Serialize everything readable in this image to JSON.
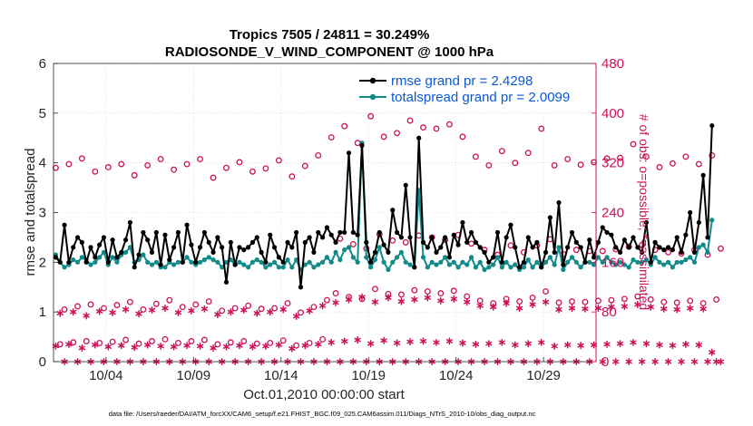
{
  "colors": {
    "rmse": "#000000",
    "spread": "#118a8a",
    "obs": "#cc1158",
    "legend_text": "#0a58d6",
    "axis": "#262626"
  },
  "chart_data": {
    "type": "line",
    "title": "Tropics 7505 / 24811 = 30.249%",
    "subtitle": "RADIOSONDE_V_WIND_COMPONENT @ 1000 hPa",
    "xlabel": "Oct.01,2010 00:00:00 start",
    "ylabel": "rmse and totalspread",
    "y2label": "# of obs: o=possible; *=assimilated",
    "ylim": [
      0,
      6
    ],
    "y2lim": [
      0,
      480
    ],
    "yticks": [
      "0",
      "1",
      "2",
      "3",
      "4",
      "5",
      "6"
    ],
    "y2ticks": [
      "0",
      "80",
      "160",
      "240",
      "320",
      "400",
      "480"
    ],
    "xlim": [
      1.0,
      32.0
    ],
    "xticks": [
      {
        "x": 4,
        "label": "10/04"
      },
      {
        "x": 9,
        "label": "10/09"
      },
      {
        "x": 14,
        "label": "10/14"
      },
      {
        "x": 19,
        "label": "10/19"
      },
      {
        "x": 24,
        "label": "10/24"
      },
      {
        "x": 29,
        "label": "10/29"
      }
    ],
    "legend": {
      "position": "top-right",
      "entries": [
        "rmse grand pr = 2.4298",
        "totalspread grand pr = 2.0099"
      ]
    },
    "series": [
      {
        "name": "rmse",
        "x0": 1.125,
        "dx": 0.25,
        "axis": "left",
        "values": [
          2.1,
          2.0,
          2.75,
          2.0,
          2.3,
          2.5,
          2.4,
          2.0,
          2.3,
          2.1,
          2.35,
          2.5,
          2.0,
          2.45,
          2.1,
          2.2,
          2.45,
          2.8,
          1.9,
          2.15,
          2.6,
          2.45,
          2.2,
          2.6,
          1.95,
          2.55,
          2.05,
          2.3,
          2.6,
          2.0,
          2.75,
          2.35,
          2.0,
          2.3,
          2.6,
          2.4,
          2.2,
          2.5,
          2.3,
          1.6,
          2.4,
          1.95,
          2.3,
          2.25,
          2.3,
          2.4,
          2.5,
          2.2,
          2.0,
          2.55,
          2.3,
          2.1,
          2.0,
          2.4,
          2.3,
          2.6,
          1.5,
          2.4,
          2.5,
          2.2,
          2.6,
          2.5,
          2.7,
          2.55,
          2.4,
          2.6,
          2.6,
          4.2,
          2.6,
          2.55,
          4.35,
          2.4,
          2.0,
          2.2,
          2.6,
          2.35,
          2.2,
          3.05,
          2.6,
          2.5,
          3.55,
          2.5,
          1.9,
          4.5,
          2.4,
          2.3,
          2.5,
          2.2,
          2.3,
          2.5,
          2.1,
          2.55,
          2.35,
          2.8,
          2.4,
          2.6,
          2.4,
          2.3,
          2.2,
          2.0,
          2.1,
          2.6,
          2.0,
          2.5,
          2.75,
          2.3,
          1.9,
          2.0,
          2.5,
          2.3,
          2.4,
          1.9,
          2.2,
          2.9,
          2.2,
          3.2,
          1.95,
          2.3,
          2.6,
          2.4,
          2.3,
          2.0,
          2.45,
          2.1,
          2.4,
          2.7,
          2.6,
          2.55,
          2.3,
          2.2,
          2.45,
          2.3,
          2.5,
          2.3,
          2.2,
          2.8,
          2.0,
          2.4,
          2.3,
          2.25,
          2.3,
          2.25,
          2.5,
          2.2,
          2.55,
          3.0,
          2.2,
          2.8,
          3.75,
          2.5,
          4.75
        ]
      },
      {
        "name": "totalspread",
        "x0": 1.125,
        "dx": 0.25,
        "axis": "left",
        "values": [
          2.15,
          2.0,
          1.9,
          1.95,
          2.05,
          2.0,
          2.1,
          2.05,
          1.95,
          2.0,
          2.1,
          2.2,
          1.95,
          2.1,
          2.0,
          2.15,
          2.2,
          2.3,
          2.0,
          2.05,
          2.15,
          2.0,
          1.95,
          2.0,
          1.9,
          1.9,
          2.0,
          1.95,
          2.0,
          2.0,
          2.1,
          2.0,
          1.95,
          2.0,
          2.05,
          2.1,
          2.05,
          2.0,
          1.9,
          2.0,
          2.05,
          1.95,
          2.0,
          1.95,
          1.9,
          2.0,
          2.05,
          2.0,
          1.9,
          1.95,
          2.0,
          1.9,
          1.9,
          2.05,
          1.9,
          2.05,
          1.85,
          1.95,
          2.0,
          1.9,
          1.95,
          2.0,
          2.1,
          2.0,
          2.2,
          2.05,
          2.25,
          2.3,
          2.1,
          2.0,
          4.4,
          2.1,
          1.9,
          2.05,
          2.3,
          2.0,
          1.85,
          2.0,
          2.1,
          2.2,
          2.0,
          1.95,
          1.9,
          3.45,
          2.1,
          1.9,
          2.0,
          1.95,
          2.0,
          2.1,
          1.95,
          2.0,
          1.9,
          2.0,
          1.95,
          2.1,
          1.9,
          2.0,
          1.85,
          1.9,
          1.95,
          2.1,
          1.9,
          2.0,
          1.9,
          1.95,
          1.85,
          1.9,
          2.05,
          1.9,
          2.0,
          1.9,
          2.0,
          2.1,
          1.95,
          2.3,
          1.85,
          2.0,
          2.1,
          2.0,
          1.9,
          2.0,
          2.0,
          1.95,
          2.1,
          2.0,
          2.1,
          2.0,
          1.95,
          2.0,
          1.95,
          1.9,
          2.05,
          2.0,
          2.0,
          2.05,
          1.95,
          2.1,
          2.0,
          1.95,
          2.0,
          1.9,
          2.0,
          2.0,
          2.05,
          2.1,
          2.0,
          2.3,
          2.35,
          2.2,
          2.85
        ]
      },
      {
        "name": "possible",
        "x0": 1.125,
        "dx": 0.25,
        "axis": "right",
        "values": [
          312,
          28,
          84,
          318,
          31,
          89,
          327,
          33,
          92,
          306,
          30,
          86,
          313,
          32,
          91,
          318,
          35,
          96,
          300,
          29,
          84,
          316,
          33,
          93,
          326,
          36,
          99,
          309,
          30,
          88,
          318,
          33,
          92,
          326,
          35,
          97,
          296,
          28,
          82,
          312,
          31,
          86,
          321,
          33,
          90,
          306,
          29,
          85,
          311,
          30,
          86,
          324,
          34,
          94,
          298,
          26,
          79,
          315,
          30,
          88,
          332,
          36,
          99,
          361,
          110,
          198,
          379,
          104,
          189,
          352,
          101,
          182,
          395,
          117,
          205,
          362,
          109,
          195,
          368,
          108,
          192,
          388,
          115,
          203,
          377,
          113,
          200,
          375,
          110,
          196,
          382,
          114,
          204,
          362,
          105,
          190,
          330,
          98,
          180,
          316,
          94,
          172,
          339,
          101,
          187,
          320,
          97,
          176,
          336,
          103,
          187,
          375,
          113,
          197,
          316,
          95,
          173,
          326,
          97,
          180,
          317,
          96,
          178,
          321,
          98,
          178,
          327,
          99,
          181,
          328,
          101,
          185,
          350,
          105,
          188,
          330,
          100,
          180,
          313,
          96,
          176,
          319,
          95,
          174,
          330,
          98,
          180,
          318,
          94,
          172,
          332,
          100,
          182
        ]
      },
      {
        "name": "assimilated",
        "x0": 1.125,
        "dx": 0.25,
        "axis": "right",
        "values": [
          25,
          78,
          0,
          28,
          80,
          0,
          22,
          74,
          0,
          27,
          81,
          0,
          24,
          79,
          0,
          26,
          84,
          0,
          23,
          77,
          0,
          27,
          83,
          0,
          25,
          86,
          0,
          24,
          79,
          0,
          26,
          82,
          0,
          25,
          85,
          0,
          22,
          76,
          0,
          24,
          80,
          0,
          26,
          83,
          0,
          24,
          78,
          0,
          25,
          80,
          0,
          27,
          84,
          0,
          21,
          73,
          0,
          26,
          82,
          0,
          28,
          90,
          0,
          31,
          95,
          0,
          33,
          100,
          0,
          35,
          104,
          0,
          29,
          96,
          0,
          34,
          103,
          0,
          30,
          97,
          0,
          32,
          100,
          0,
          33,
          103,
          0,
          31,
          98,
          0,
          33,
          101,
          0,
          30,
          96,
          0,
          28,
          90,
          0,
          29,
          88,
          0,
          31,
          94,
          0,
          27,
          86,
          0,
          29,
          92,
          0,
          31,
          96,
          0,
          25,
          84,
          0,
          27,
          86,
          0,
          26,
          85,
          0,
          27,
          86,
          0,
          28,
          88,
          0,
          29,
          89,
          0,
          31,
          92,
          0,
          29,
          88,
          0,
          27,
          85,
          0,
          26,
          84,
          0,
          28,
          86,
          0,
          27,
          85,
          0,
          15,
          0,
          0
        ]
      }
    ]
  },
  "footer": "data file: /Users/raeder/DAI/ATM_forcXX/CAM6_setup/f.e21.FHIST_BGC.f09_025.CAM6assim.011/Diags_NTrS_2010-10/obs_diag_output.nc"
}
